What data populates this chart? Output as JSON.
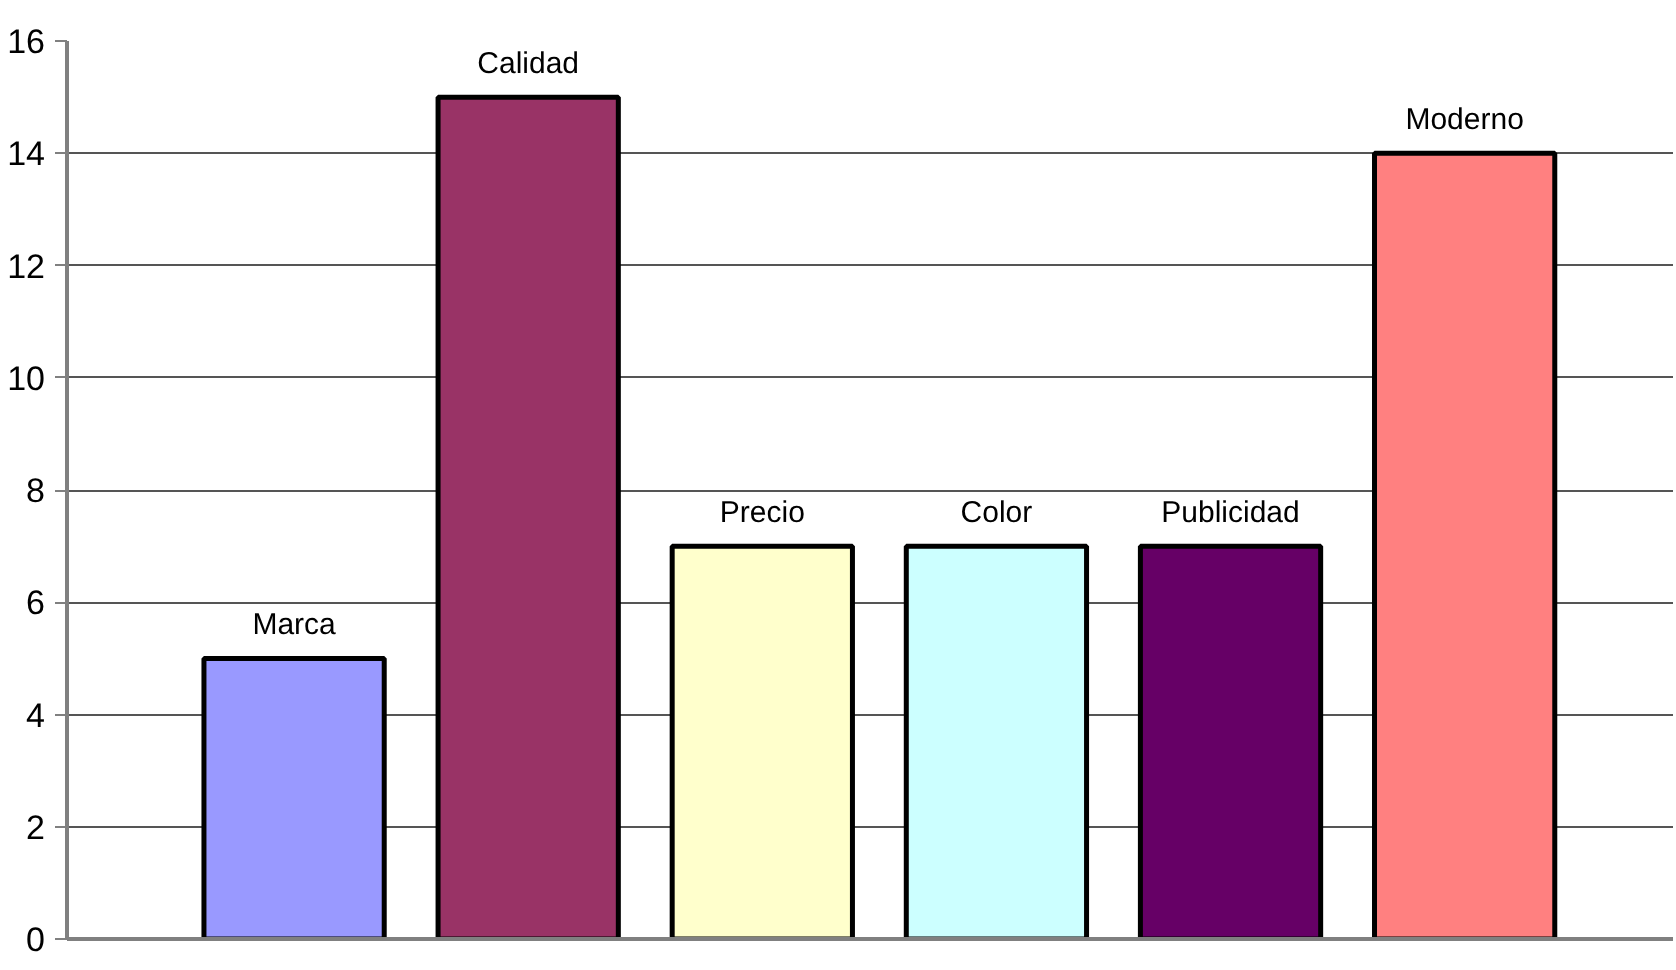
{
  "chart_data": {
    "type": "bar",
    "categories": [
      "Marca",
      "Calidad",
      "Precio",
      "Color",
      "Publicidad",
      "Moderno"
    ],
    "values": [
      5,
      15,
      7,
      7,
      7,
      14
    ],
    "colors": [
      "#9999ff",
      "#993366",
      "#ffffcc",
      "#ccffff",
      "#660066",
      "#ff8080"
    ],
    "ylim": [
      0,
      16
    ],
    "yticks": [
      0,
      2,
      4,
      6,
      8,
      10,
      12,
      14,
      16
    ],
    "grid": "y",
    "tick_labels": "y"
  }
}
